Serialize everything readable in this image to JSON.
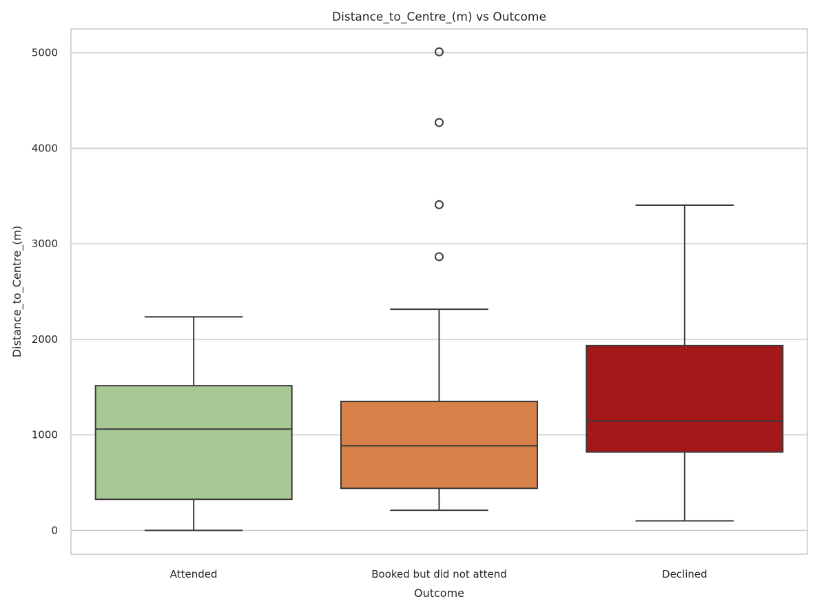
{
  "chart_data": {
    "type": "box",
    "title": "Distance_to_Centre_(m) vs Outcome",
    "xlabel": "Outcome",
    "ylabel": "Distance_to_Centre_(m)",
    "ylim": [
      -250,
      5250
    ],
    "yticks": [
      0,
      1000,
      2000,
      3000,
      4000,
      5000
    ],
    "ytick_labels": [
      "0",
      "1000",
      "2000",
      "3000",
      "4000",
      "5000"
    ],
    "grid": "horizontal",
    "categories": [
      "Attended",
      "Booked but did not attend",
      "Declined"
    ],
    "colors": [
      "#a8c896",
      "#d8814a",
      "#a5181a"
    ],
    "edge_color": "#3a3a3a",
    "boxes": [
      {
        "category": "Attended",
        "whisker_low": 0,
        "q1": 325,
        "median": 1060,
        "q3": 1515,
        "whisker_high": 2235,
        "outliers": []
      },
      {
        "category": "Booked but did not attend",
        "whisker_low": 210,
        "q1": 440,
        "median": 885,
        "q3": 1350,
        "whisker_high": 2315,
        "outliers": [
          2865,
          3410,
          4270,
          5010
        ]
      },
      {
        "category": "Declined",
        "whisker_low": 100,
        "q1": 820,
        "median": 1145,
        "q3": 1935,
        "whisker_high": 3405,
        "outliers": []
      }
    ]
  }
}
